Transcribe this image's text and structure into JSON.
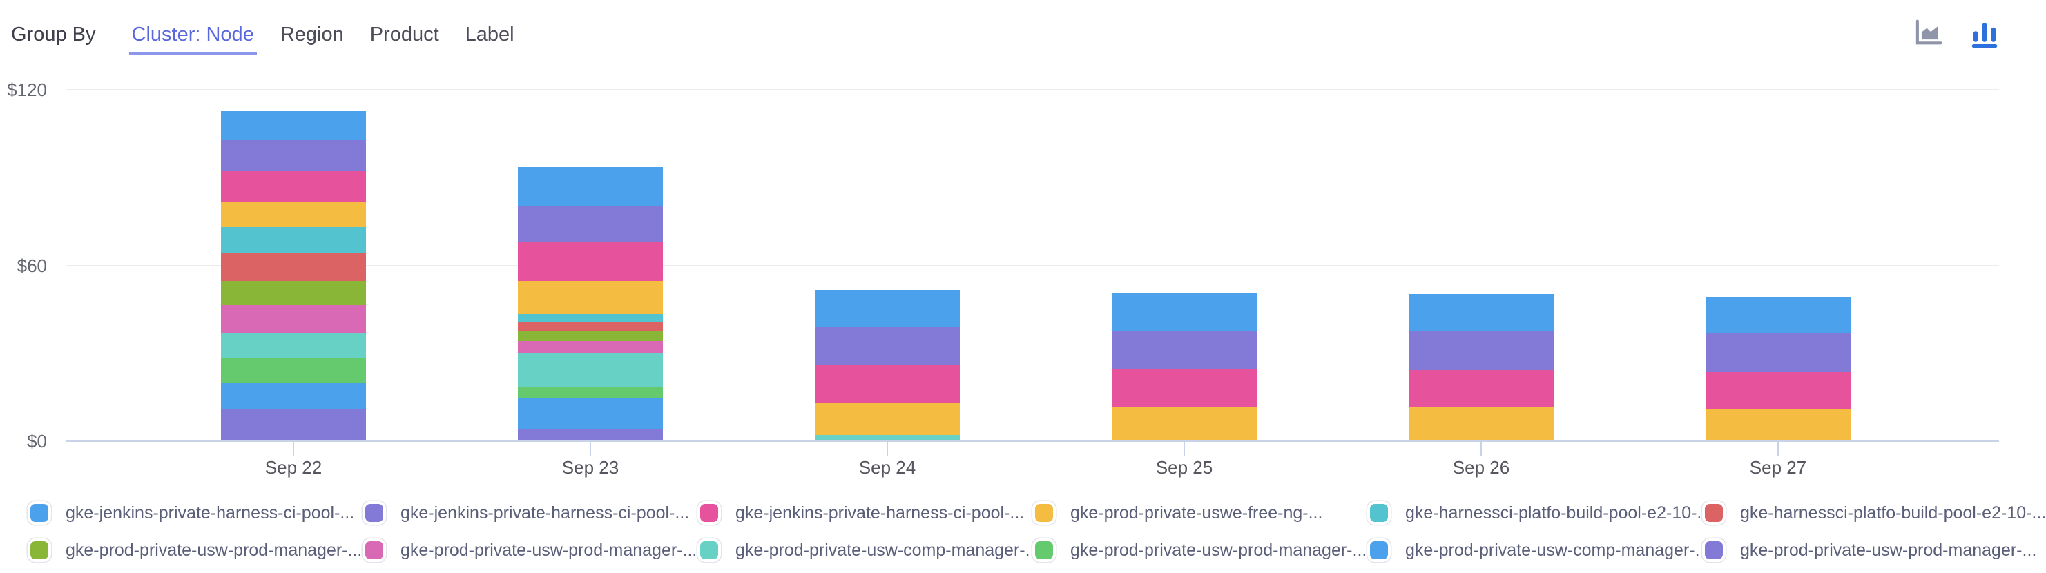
{
  "toolbar": {
    "group_by_label": "Group By",
    "tabs": [
      {
        "label": "Cluster: Node",
        "active": true
      },
      {
        "label": "Region",
        "active": false
      },
      {
        "label": "Product",
        "active": false
      },
      {
        "label": "Label",
        "active": false
      }
    ],
    "accent_color": "#5a68dd",
    "chart_type_icons": [
      {
        "name": "area-chart-icon",
        "active": false,
        "color": "#9094a8"
      },
      {
        "name": "bar-chart-icon",
        "active": true,
        "color": "#2e71dd"
      }
    ]
  },
  "chart_data": {
    "type": "bar",
    "stacked": true,
    "grid": true,
    "legend_position": "bottom",
    "title": "",
    "xlabel": "",
    "ylabel": "",
    "ylim": [
      0,
      120
    ],
    "yticks": [
      {
        "label": "$0",
        "value": 0
      },
      {
        "label": "$60",
        "value": 60
      },
      {
        "label": "$120",
        "value": 120
      }
    ],
    "categories": [
      "Sep 22",
      "Sep 23",
      "Sep 24",
      "Sep 25",
      "Sep 26",
      "Sep 27"
    ],
    "series": [
      {
        "name": "gke-jenkins-private-harness-ci-pool-...",
        "color": "#4ba1eb",
        "values": [
          10.0,
          13.2,
          12.6,
          12.8,
          12.7,
          12.4
        ]
      },
      {
        "name": "gke-jenkins-private-harness-ci-pool-...",
        "color": "#8379d6",
        "values": [
          10.3,
          12.5,
          13.1,
          13.3,
          13.2,
          13.2
        ]
      },
      {
        "name": "gke-jenkins-private-harness-ci-pool-...",
        "color": "#e6529b",
        "values": [
          10.7,
          13.4,
          12.9,
          12.8,
          12.7,
          12.5
        ]
      },
      {
        "name": "gke-prod-private-uswe-free-ng-...",
        "color": "#f4bc40",
        "values": [
          8.8,
          11.2,
          10.8,
          11.6,
          11.6,
          11.1
        ]
      },
      {
        "name": "gke-harnessci-platfo-build-pool-e2-10-...",
        "color": "#53c3d0",
        "values": [
          8.9,
          2.8,
          0,
          0,
          0,
          0
        ]
      },
      {
        "name": "gke-harnessci-platfo-build-pool-e2-10-...",
        "color": "#db6364",
        "values": [
          9.4,
          3.2,
          0,
          0,
          0,
          0
        ]
      },
      {
        "name": "gke-prod-private-usw-prod-manager-...",
        "color": "#89b637",
        "values": [
          8.2,
          3.3,
          0,
          0,
          0,
          0
        ]
      },
      {
        "name": "gke-prod-private-usw-prod-manager-...",
        "color": "#d969b5",
        "values": [
          9.5,
          3.9,
          0,
          0,
          0,
          0
        ]
      },
      {
        "name": "gke-prod-private-usw-comp-manager-...",
        "color": "#68d1c6",
        "values": [
          8.4,
          11.5,
          2.2,
          0,
          0,
          0
        ]
      },
      {
        "name": "gke-prod-private-usw-prod-manager-...",
        "color": "#65c96e",
        "values": [
          8.8,
          3.9,
          0,
          0,
          0,
          0
        ]
      },
      {
        "name": "gke-prod-private-usw-comp-manager-...",
        "color": "#4ba1eb",
        "values": [
          8.7,
          10.7,
          0,
          0,
          0,
          0
        ]
      },
      {
        "name": "gke-prod-private-usw-prod-manager-...",
        "color": "#8379d6",
        "values": [
          11.1,
          4.1,
          0,
          0,
          0,
          0
        ]
      }
    ]
  }
}
